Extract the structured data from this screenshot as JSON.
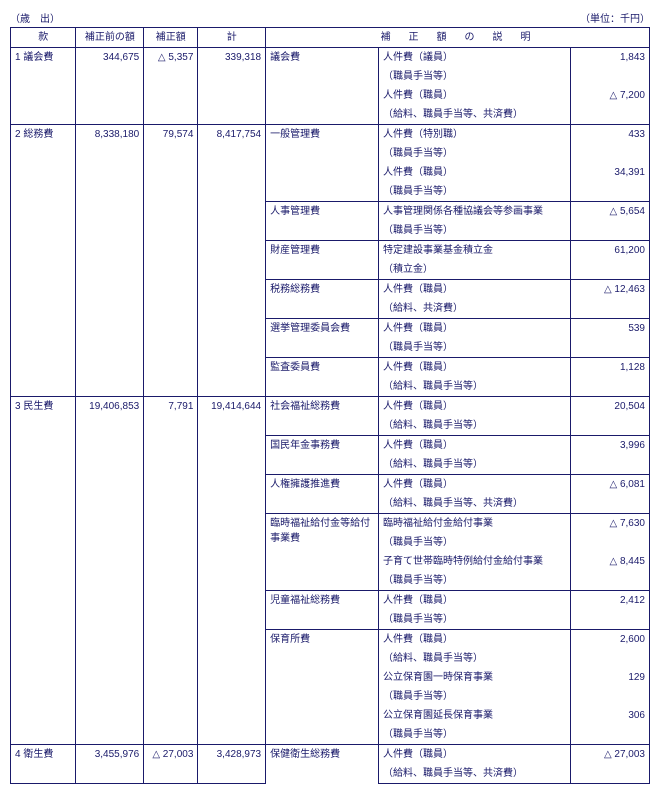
{
  "header_left": "（歳　出）",
  "header_right": "（単位：千円）",
  "columns": {
    "kan": "款",
    "before": "補正前の額",
    "hosei": "補正額",
    "total": "計",
    "desc": "補　正　額　の　説　明"
  },
  "rows": [
    {
      "kan": "1 議会費",
      "before": "344,675",
      "hosei": "△ 5,357",
      "total": "339,318",
      "subs": [
        {
          "s1": "議会費",
          "lines": [
            {
              "t": "人件費（議員）",
              "amt": "1,843"
            },
            {
              "t": "（職員手当等）",
              "amt": ""
            },
            {
              "t": "人件費（職員）",
              "amt": "△ 7,200"
            },
            {
              "t": "（給料、職員手当等、共済費）",
              "amt": ""
            }
          ]
        }
      ]
    },
    {
      "kan": "2 総務費",
      "before": "8,338,180",
      "hosei": "79,574",
      "total": "8,417,754",
      "subs": [
        {
          "s1": "一般管理費",
          "lines": [
            {
              "t": "人件費（特別職）",
              "amt": "433"
            },
            {
              "t": "（職員手当等）",
              "amt": ""
            },
            {
              "t": "人件費（職員）",
              "amt": "34,391"
            },
            {
              "t": "（職員手当等）",
              "amt": ""
            }
          ]
        },
        {
          "s1": "人事管理費",
          "lines": [
            {
              "t": "人事管理関係各種協議会等参画事業",
              "amt": "△ 5,654"
            },
            {
              "t": "（職員手当等）",
              "amt": ""
            }
          ]
        },
        {
          "s1": "財産管理費",
          "lines": [
            {
              "t": "特定建設事業基金積立金",
              "amt": "61,200"
            },
            {
              "t": "（積立金）",
              "amt": ""
            }
          ]
        },
        {
          "s1": "税務総務費",
          "lines": [
            {
              "t": "人件費（職員）",
              "amt": "△ 12,463"
            },
            {
              "t": "（給料、共済費）",
              "amt": ""
            }
          ]
        },
        {
          "s1": "選挙管理委員会費",
          "lines": [
            {
              "t": "人件費（職員）",
              "amt": "539"
            },
            {
              "t": "（職員手当等）",
              "amt": ""
            }
          ]
        },
        {
          "s1": "監査委員費",
          "lines": [
            {
              "t": "人件費（職員）",
              "amt": "1,128"
            },
            {
              "t": "（給料、職員手当等）",
              "amt": ""
            }
          ]
        }
      ]
    },
    {
      "kan": "3 民生費",
      "before": "19,406,853",
      "hosei": "7,791",
      "total": "19,414,644",
      "subs": [
        {
          "s1": "社会福祉総務費",
          "lines": [
            {
              "t": "人件費（職員）",
              "amt": "20,504"
            },
            {
              "t": "（給料、職員手当等）",
              "amt": ""
            }
          ]
        },
        {
          "s1": "国民年金事務費",
          "lines": [
            {
              "t": "人件費（職員）",
              "amt": "3,996"
            },
            {
              "t": "（給料、職員手当等）",
              "amt": ""
            }
          ]
        },
        {
          "s1": "人権擁護推進費",
          "lines": [
            {
              "t": "人件費（職員）",
              "amt": "△ 6,081"
            },
            {
              "t": "（給料、職員手当等、共済費）",
              "amt": ""
            }
          ]
        },
        {
          "s1": "臨時福祉給付金等給付事業費",
          "lines": [
            {
              "t": "臨時福祉給付金給付事業",
              "amt": "△ 7,630"
            },
            {
              "t": "（職員手当等）",
              "amt": ""
            },
            {
              "t": "子育て世帯臨時特例給付金給付事業",
              "amt": "△ 8,445"
            },
            {
              "t": "（職員手当等）",
              "amt": ""
            }
          ]
        },
        {
          "s1": "児童福祉総務費",
          "lines": [
            {
              "t": "人件費（職員）",
              "amt": "2,412"
            },
            {
              "t": "（職員手当等）",
              "amt": ""
            }
          ]
        },
        {
          "s1": "保育所費",
          "lines": [
            {
              "t": "人件費（職員）",
              "amt": "2,600"
            },
            {
              "t": "（給料、職員手当等）",
              "amt": ""
            },
            {
              "t": "公立保育園一時保育事業",
              "amt": "129"
            },
            {
              "t": "（職員手当等）",
              "amt": ""
            },
            {
              "t": "公立保育園延長保育事業",
              "amt": "306"
            },
            {
              "t": "（職員手当等）",
              "amt": ""
            }
          ]
        }
      ]
    },
    {
      "kan": "4 衛生費",
      "before": "3,455,976",
      "hosei": "△ 27,003",
      "total": "3,428,973",
      "subs": [
        {
          "s1": "保健衛生総務費",
          "lines": [
            {
              "t": "人件費（職員）",
              "amt": "△ 27,003"
            },
            {
              "t": "（給料、職員手当等、共済費）",
              "amt": ""
            }
          ]
        }
      ]
    }
  ]
}
